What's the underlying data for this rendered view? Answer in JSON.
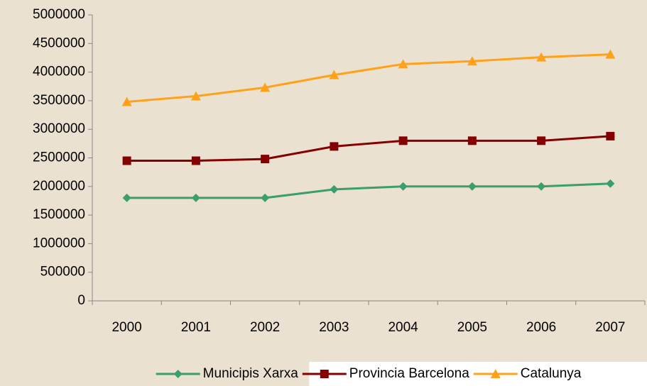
{
  "chart_data": {
    "type": "line",
    "categories": [
      "2000",
      "2001",
      "2002",
      "2003",
      "2004",
      "2005",
      "2006",
      "2007"
    ],
    "series": [
      {
        "name": "Municipis Xarxa",
        "color": "#3a9e6e",
        "marker": "diamond",
        "values": [
          1800000,
          1800000,
          1800000,
          1950000,
          2000000,
          2000000,
          2000000,
          2050000
        ]
      },
      {
        "name": "Provincia Barcelona",
        "color": "#850000",
        "marker": "square",
        "values": [
          2450000,
          2450000,
          2480000,
          2700000,
          2800000,
          2800000,
          2800000,
          2880000
        ]
      },
      {
        "name": "Catalunya",
        "color": "#ffa21a",
        "marker": "triangle",
        "values": [
          3480000,
          3580000,
          3730000,
          3950000,
          4140000,
          4190000,
          4260000,
          4310000
        ]
      }
    ],
    "ylim": [
      0,
      5000000
    ],
    "yticks": [
      0,
      500000,
      1000000,
      1500000,
      2000000,
      2500000,
      3000000,
      3500000,
      4000000,
      4500000,
      5000000
    ],
    "legend": "bottom"
  }
}
